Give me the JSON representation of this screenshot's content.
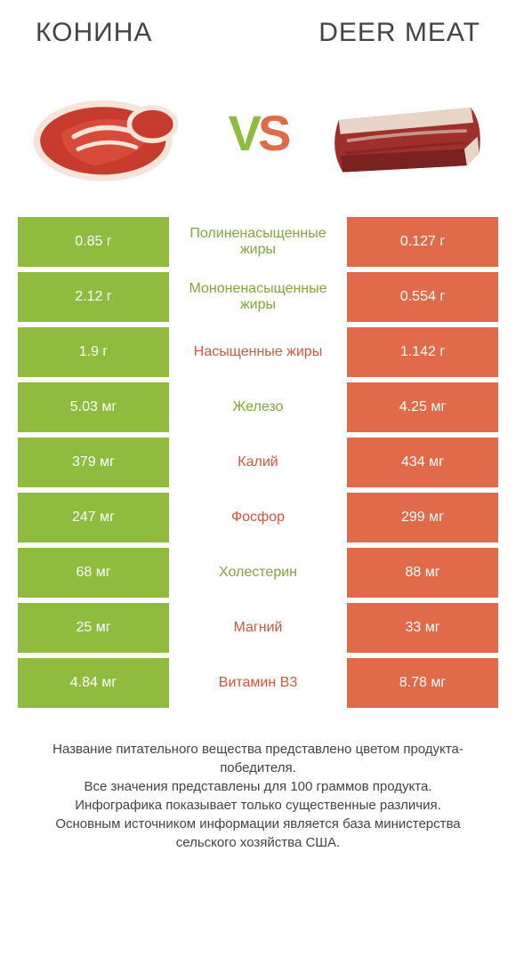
{
  "colors": {
    "green": "#8fbc3f",
    "orange": "#e06a4a",
    "green_text": "#7fa838",
    "orange_text": "#d4573a"
  },
  "header": {
    "left_title": "КОНИНА",
    "right_title": "DEER MEAT"
  },
  "vs": {
    "v": "V",
    "s": "S"
  },
  "rows": [
    {
      "left": "0.85 г",
      "label": "Полиненасыщенные жиры",
      "right": "0.127 г",
      "winner": "left"
    },
    {
      "left": "2.12 г",
      "label": "Мононенасыщенные жиры",
      "right": "0.554 г",
      "winner": "left"
    },
    {
      "left": "1.9 г",
      "label": "Насыщенные жиры",
      "right": "1.142 г",
      "winner": "right"
    },
    {
      "left": "5.03 мг",
      "label": "Железо",
      "right": "4.25 мг",
      "winner": "left"
    },
    {
      "left": "379 мг",
      "label": "Калий",
      "right": "434 мг",
      "winner": "right"
    },
    {
      "left": "247 мг",
      "label": "Фосфор",
      "right": "299 мг",
      "winner": "right"
    },
    {
      "left": "68 мг",
      "label": "Холестерин",
      "right": "88 мг",
      "winner": "left"
    },
    {
      "left": "25 мг",
      "label": "Магний",
      "right": "33 мг",
      "winner": "right"
    },
    {
      "left": "4.84 мг",
      "label": "Витамин B3",
      "right": "8.78 мг",
      "winner": "right"
    }
  ],
  "footer": {
    "l1": "Название питательного вещества представлено цветом продукта-победителя.",
    "l2": "Все значения представлены для 100 граммов продукта.",
    "l3": "Инфографика показывает только существенные различия.",
    "l4": "Основным источником информации является база министерства сельского хозяйства США."
  }
}
